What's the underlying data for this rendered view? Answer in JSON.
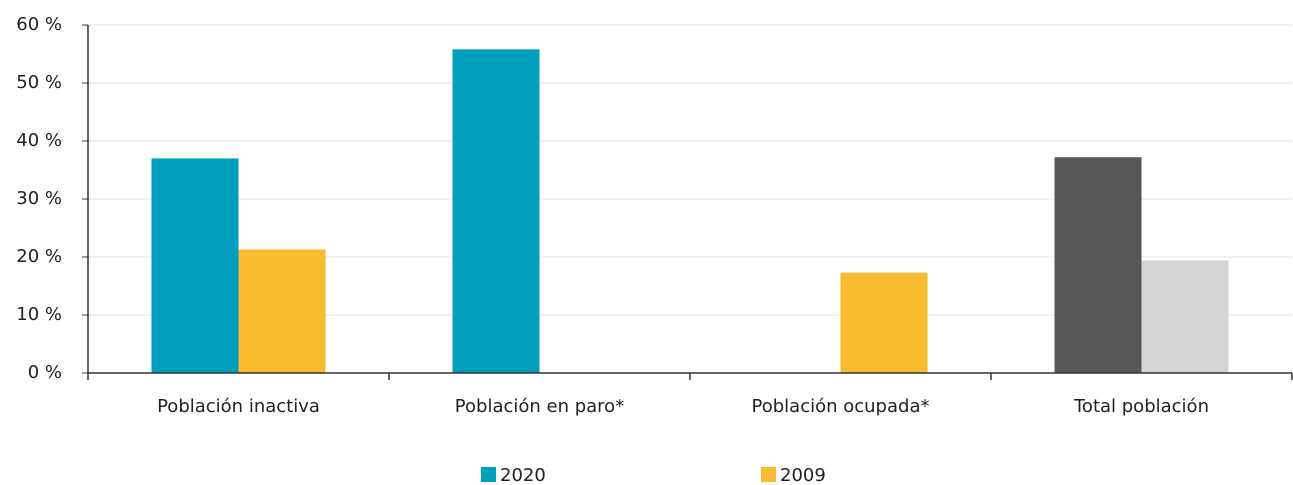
{
  "chart_data": {
    "type": "bar",
    "categories": [
      "Población inactiva",
      "Población en paro*",
      "Población ocupada*",
      "Total población"
    ],
    "series": [
      {
        "name": "2020",
        "color": "#009fbd",
        "colors": [
          "#009fbd",
          "#009fbd",
          "#009fbd",
          "#575756"
        ],
        "values": [
          37,
          55.8,
          null,
          37.2
        ]
      },
      {
        "name": "2009",
        "color": "#f9bb2f",
        "colors": [
          "#f9bb2f",
          "#f9bb2f",
          "#f9bb2f",
          "#d4d4d4"
        ],
        "values": [
          21.3,
          null,
          17.3,
          19.4
        ]
      }
    ],
    "ylim": [
      0,
      60
    ],
    "yticks": [
      {
        "value": 0,
        "label": "0 %"
      },
      {
        "value": 10,
        "label": "10 %"
      },
      {
        "value": 20,
        "label": "20 %"
      },
      {
        "value": 30,
        "label": "30 %"
      },
      {
        "value": 40,
        "label": "40 %"
      },
      {
        "value": 50,
        "label": "50 %"
      },
      {
        "value": 60,
        "label": "60 %"
      }
    ],
    "grid": true,
    "legend": "bottom"
  }
}
